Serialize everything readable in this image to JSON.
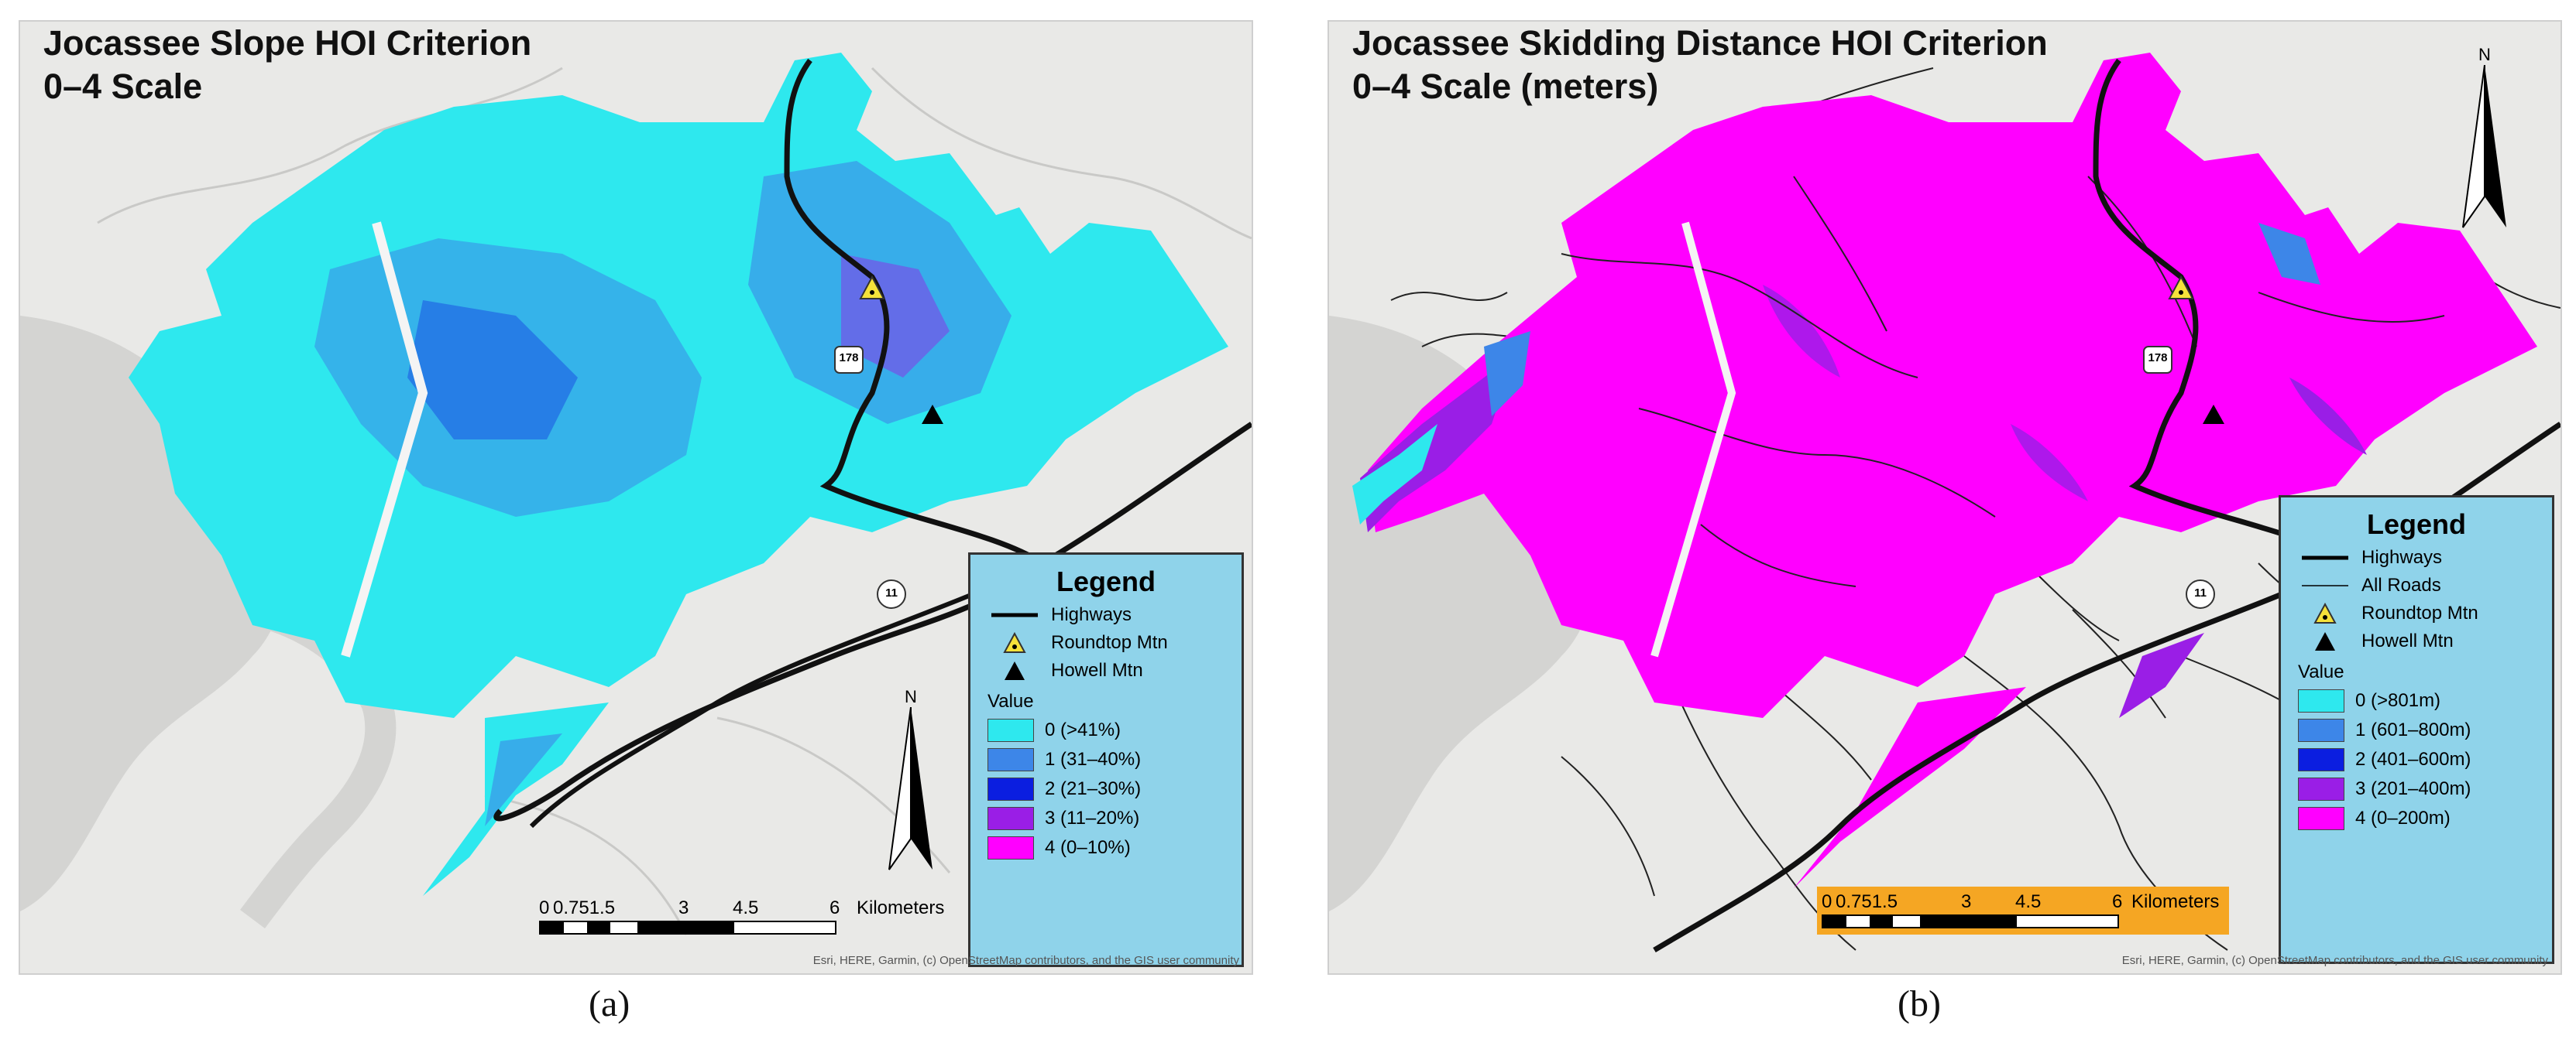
{
  "panels": [
    {
      "id": "a",
      "title_line1": "Jocassee Slope HOI Criterion",
      "title_line2": "0–4 Scale",
      "caption": "(a)",
      "legend": {
        "title": "Legend",
        "symbols": [
          {
            "label": "Highways",
            "icon": "highway-line-icon"
          },
          {
            "label": "Roundtop Mtn",
            "icon": "roundtop-triangle-icon"
          },
          {
            "label": "Howell Mtn",
            "icon": "howell-triangle-icon"
          }
        ],
        "value_heading": "Value",
        "classes": [
          {
            "label": "0 (>41%)",
            "color": "#2ee8ee"
          },
          {
            "label": "1 (31–40%)",
            "color": "#3d86e8"
          },
          {
            "label": "2 (21–30%)",
            "color": "#0b1ee0"
          },
          {
            "label": "3 (11–20%)",
            "color": "#9a1ee6"
          },
          {
            "label": "4 (0–10%)",
            "color": "#ff00ff"
          }
        ]
      },
      "scale": {
        "ticks": [
          "0",
          "0.751.5",
          "3",
          "4.5",
          "6"
        ],
        "unit": "Kilometers"
      },
      "north": "N",
      "route_shield": "178",
      "route_shield_11": "11",
      "attribution": "Esri, HERE, Garmin, (c) OpenStreetMap contributors, and the GIS user community"
    },
    {
      "id": "b",
      "title_line1": "Jocassee Skidding Distance HOI Criterion",
      "title_line2": "0–4 Scale (meters)",
      "caption": "(b)",
      "legend": {
        "title": "Legend",
        "symbols": [
          {
            "label": "Highways",
            "icon": "highway-line-icon"
          },
          {
            "label": "All Roads",
            "icon": "road-line-icon"
          },
          {
            "label": "Roundtop Mtn",
            "icon": "roundtop-triangle-icon"
          },
          {
            "label": "Howell Mtn",
            "icon": "howell-triangle-icon"
          }
        ],
        "value_heading": "Value",
        "classes": [
          {
            "label": "0 (>801m)",
            "color": "#2ee8ee"
          },
          {
            "label": "1 (601–800m)",
            "color": "#3d86e8"
          },
          {
            "label": "2 (401–600m)",
            "color": "#0b1ee0"
          },
          {
            "label": "3 (201–400m)",
            "color": "#9a1ee6"
          },
          {
            "label": "4 (0–200m)",
            "color": "#ff00ff"
          }
        ]
      },
      "scale": {
        "ticks": [
          "0",
          "0.751.5",
          "3",
          "4.5",
          "6"
        ],
        "unit": "Kilometers"
      },
      "north": "N",
      "route_shield": "178",
      "route_shield_11": "11",
      "attribution": "Esri, HERE, Garmin, (c) OpenStreetMap contributors, and the GIS user community"
    }
  ]
}
